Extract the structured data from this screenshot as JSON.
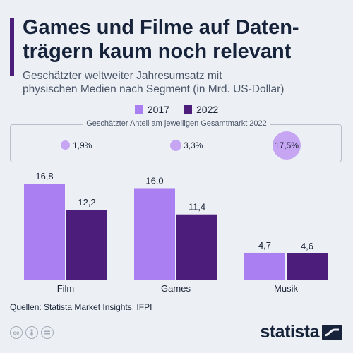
{
  "header": {
    "title": "Games und Filme auf Daten-\nträgern kaum noch relevant",
    "subtitle": "Geschätzter weltweiter Jahresumsatz mit\nphysischen Medien nach Segment (in Mrd. US-Dollar)"
  },
  "share": {
    "caption": "Geschätzter Anteil am jeweiligen Gesamtmarkt 2022",
    "items": [
      {
        "segment": "Film",
        "value": 1.9,
        "label": "1,9%"
      },
      {
        "segment": "Games",
        "value": 3.3,
        "label": "3,3%"
      },
      {
        "segment": "Musik",
        "value": 17.5,
        "label": "17,5%"
      }
    ],
    "color": "#c6a6f2"
  },
  "chart_data": {
    "type": "bar",
    "categories": [
      "Film",
      "Games",
      "Musik"
    ],
    "series": [
      {
        "name": "2017",
        "values": [
          16.8,
          16.0,
          4.7
        ],
        "labels": [
          "16,8",
          "16,0",
          "4,7"
        ],
        "color": "#a97ff2"
      },
      {
        "name": "2022",
        "values": [
          12.2,
          11.4,
          4.6
        ],
        "labels": [
          "12,2",
          "11,4",
          "4,6"
        ],
        "color": "#4c1d7a"
      }
    ],
    "ylim": [
      0,
      16.8
    ],
    "legend_position": "top-center",
    "grid": false
  },
  "footer": {
    "source": "Quellen: Statista Market Insights, IFPI",
    "license_icons": [
      "cc-icon",
      "person-icon",
      "equals-icon"
    ],
    "logo": "statista"
  }
}
